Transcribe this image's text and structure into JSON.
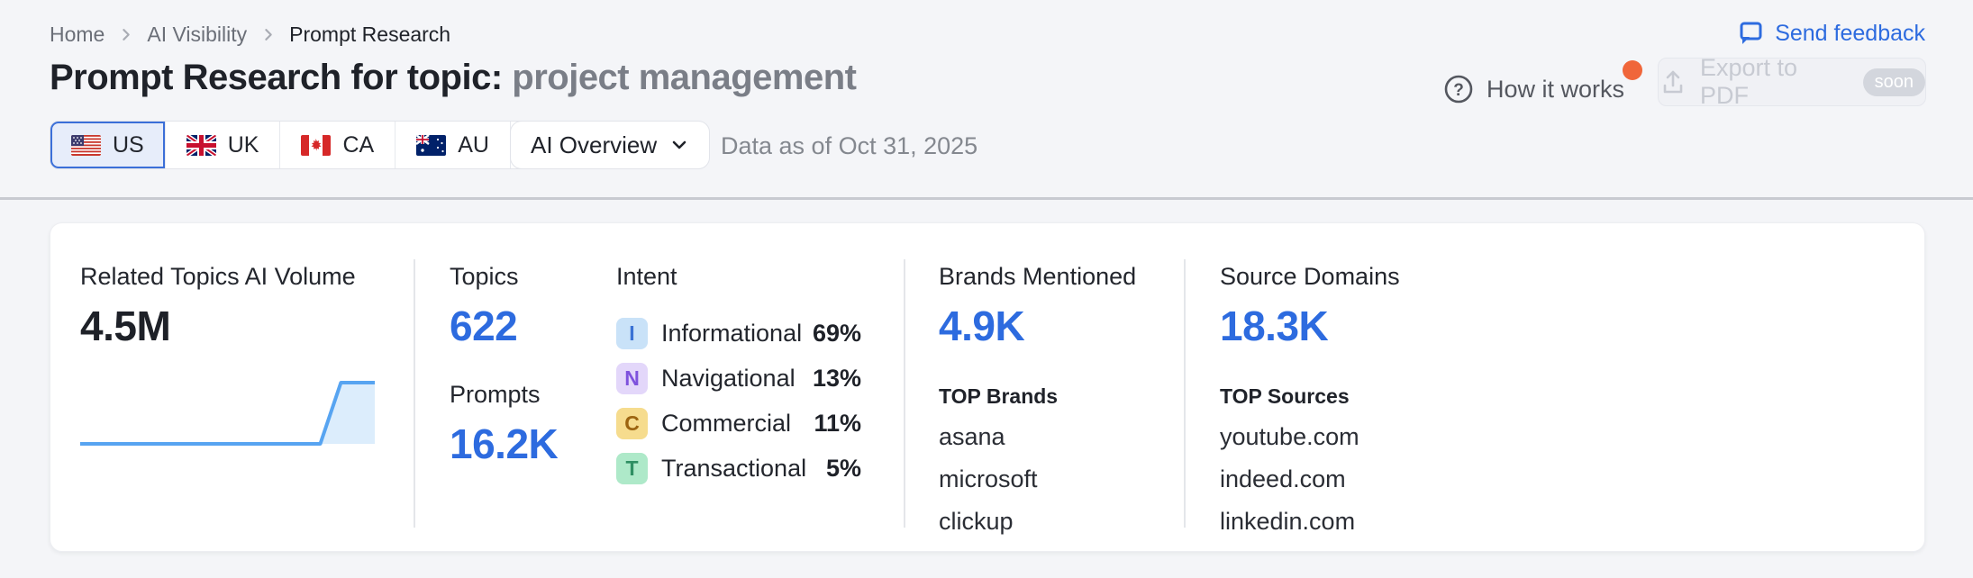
{
  "breadcrumb": {
    "items": [
      {
        "label": "Home"
      },
      {
        "label": "AI Visibility"
      },
      {
        "label": "Prompt Research"
      }
    ]
  },
  "header": {
    "send_feedback_label": "Send feedback",
    "title_prefix": "Prompt Research for topic: ",
    "title_topic": "project management",
    "how_it_works_label": "How it works",
    "export_label": "Export to PDF",
    "export_badge": "soon"
  },
  "filters": {
    "countries": [
      {
        "code": "US",
        "selected": true
      },
      {
        "code": "UK",
        "selected": false
      },
      {
        "code": "CA",
        "selected": false
      },
      {
        "code": "AU",
        "selected": false
      }
    ],
    "more_label": "•••",
    "report_type": "AI Overview",
    "data_as_of": "Data as of Oct 31, 2025"
  },
  "summary": {
    "related_topics": {
      "label": "Related Topics AI Volume",
      "value": "4.5M",
      "sparkline": {
        "points": [
          [
            0,
            0
          ],
          [
            0.815,
            0
          ],
          [
            0.885,
            1
          ],
          [
            1,
            1
          ]
        ]
      }
    },
    "topics": {
      "label": "Topics",
      "value": "622"
    },
    "prompts": {
      "label": "Prompts",
      "value": "16.2K"
    },
    "intent": {
      "label": "Intent",
      "rows": [
        {
          "badge": "I",
          "label": "Informational",
          "value": "69%",
          "badge_bg": "#C9E2F8",
          "badge_fg": "#3A72D4"
        },
        {
          "badge": "N",
          "label": "Navigational",
          "value": "13%",
          "badge_bg": "#E3D7FA",
          "badge_fg": "#7E52DD"
        },
        {
          "badge": "C",
          "label": "Commercial",
          "value": "11%",
          "badge_bg": "#F6DC8E",
          "badge_fg": "#9C6410"
        },
        {
          "badge": "T",
          "label": "Transactional",
          "value": "5%",
          "badge_bg": "#AEE9C9",
          "badge_fg": "#2F8F63"
        }
      ]
    },
    "brands": {
      "label": "Brands Mentioned",
      "value": "4.9K",
      "list_title": "TOP Brands",
      "items": [
        "asana",
        "microsoft",
        "clickup"
      ]
    },
    "sources": {
      "label": "Source Domains",
      "value": "18.3K",
      "list_title": "TOP Sources",
      "items": [
        "youtube.com",
        "indeed.com",
        "linkedin.com"
      ]
    }
  },
  "icons": {
    "send_feedback": "chat-bubble",
    "how_it_works": "question-circle",
    "export": "upload-arrow",
    "report_dropdown": "chevron-down",
    "breadcrumb_separator": "chevron-right",
    "more_countries": "ellipsis"
  },
  "colors": {
    "accent_blue": "#2D6BDF",
    "notification_orange": "#F0663A",
    "sparkline_line": "#57A4F1",
    "sparkline_fill": "#DCEDFC",
    "page_background": "#F4F5F8",
    "divider": "#C8CAD1"
  }
}
